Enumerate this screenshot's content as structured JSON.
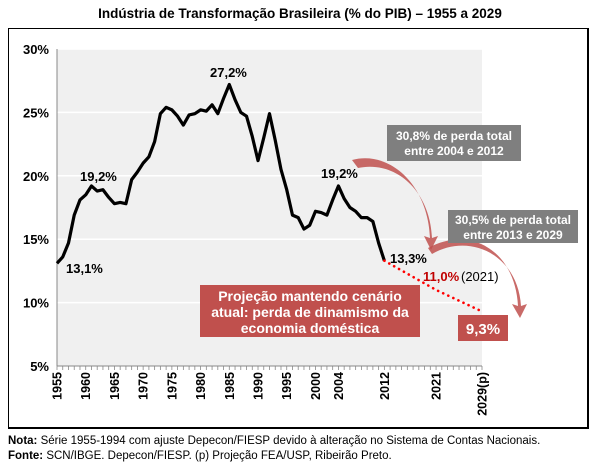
{
  "chart_data": {
    "type": "line",
    "title": "Indústria de Transformação Brasileira (% do PIB) – 1955 a 2029",
    "xlabel": "",
    "ylabel": "",
    "ylim": [
      5,
      30
    ],
    "y_ticks": [
      "5%",
      "10%",
      "15%",
      "20%",
      "25%",
      "30%"
    ],
    "x_tick_labels": [
      {
        "year": 1955,
        "label": "1955"
      },
      {
        "year": 1960,
        "label": "1960"
      },
      {
        "year": 1965,
        "label": "1965"
      },
      {
        "year": 1970,
        "label": "1970"
      },
      {
        "year": 1975,
        "label": "1975"
      },
      {
        "year": 1980,
        "label": "1980"
      },
      {
        "year": 1985,
        "label": "1985"
      },
      {
        "year": 1990,
        "label": "1990"
      },
      {
        "year": 1995,
        "label": "1995"
      },
      {
        "year": 2000,
        "label": "2000"
      },
      {
        "year": 2004,
        "label": "2004"
      },
      {
        "year": 2012,
        "label": "2012"
      },
      {
        "year": 2021,
        "label": "2021"
      },
      {
        "year": 2029,
        "label": "2029(p)"
      }
    ],
    "xlim": [
      1955,
      2029
    ],
    "grid": "horizontal",
    "series": [
      {
        "style": "solid",
        "color": "#000000",
        "x": [
          1955,
          1956,
          1957,
          1958,
          1959,
          1960,
          1961,
          1962,
          1963,
          1964,
          1965,
          1966,
          1967,
          1968,
          1969,
          1970,
          1971,
          1972,
          1973,
          1974,
          1975,
          1976,
          1977,
          1978,
          1979,
          1980,
          1981,
          1982,
          1983,
          1984,
          1985,
          1986,
          1987,
          1988,
          1989,
          1990,
          1991,
          1992,
          1993,
          1994,
          1995,
          1996,
          1997,
          1998,
          1999,
          2000,
          2001,
          2002,
          2003,
          2004,
          2005,
          2006,
          2007,
          2008,
          2009,
          2010,
          2011,
          2012
        ],
        "y": [
          13.1,
          13.6,
          14.7,
          16.9,
          18.1,
          18.5,
          19.2,
          18.8,
          18.9,
          18.3,
          17.8,
          17.9,
          17.8,
          19.7,
          20.3,
          21.0,
          21.5,
          22.7,
          24.9,
          25.4,
          25.2,
          24.7,
          24.0,
          24.8,
          24.9,
          25.2,
          25.1,
          25.6,
          24.9,
          26.1,
          27.2,
          26.0,
          25.0,
          24.7,
          23.1,
          21.2,
          23.0,
          24.9,
          22.8,
          20.5,
          18.9,
          16.9,
          16.7,
          15.8,
          16.1,
          17.2,
          17.1,
          16.9,
          18.1,
          19.2,
          18.2,
          17.5,
          17.2,
          16.7,
          16.7,
          16.4,
          14.7,
          13.3
        ]
      },
      {
        "style": "dotted",
        "color": "#ff0000",
        "x": [
          2012,
          2021,
          2029
        ],
        "y": [
          13.3,
          11.0,
          9.3
        ]
      }
    ],
    "annotations": {
      "a1955": "13,1%",
      "a1961": "19,2%",
      "a1985": "27,2%",
      "a2004": "19,2%",
      "a2012": "13,3%",
      "a2021": "11,0%",
      "a2021_year": "(2021)",
      "a2029": "9,3%",
      "loss1": [
        "30,8% de perda total",
        "entre 2004 e 2012"
      ],
      "loss2": [
        "30,5% de perda total",
        "entre 2013 e 2029"
      ],
      "scenario": [
        "Projeção mantendo cenário",
        "atual: perda de dinamismo da",
        "economia doméstica"
      ]
    },
    "colors": {
      "plot_bg": "#f0f0f0",
      "gray_box": "#7f7f7f",
      "red_box": "#c0504d",
      "arrow": "#c0504d",
      "projection": "#ff0000",
      "highlight_text": "#c00000"
    }
  },
  "notes": {
    "nota_label": "Nota:",
    "nota_text": " Série 1955-1994 com ajuste Depecon/FIESP devido à alteração no Sistema de Contas Nacionais.",
    "fonte_label": "Fonte:",
    "fonte_text": " SCN/IBGE. Depecon/FIESP. (p) Projeção FEA/USP, Ribeirão Preto."
  }
}
